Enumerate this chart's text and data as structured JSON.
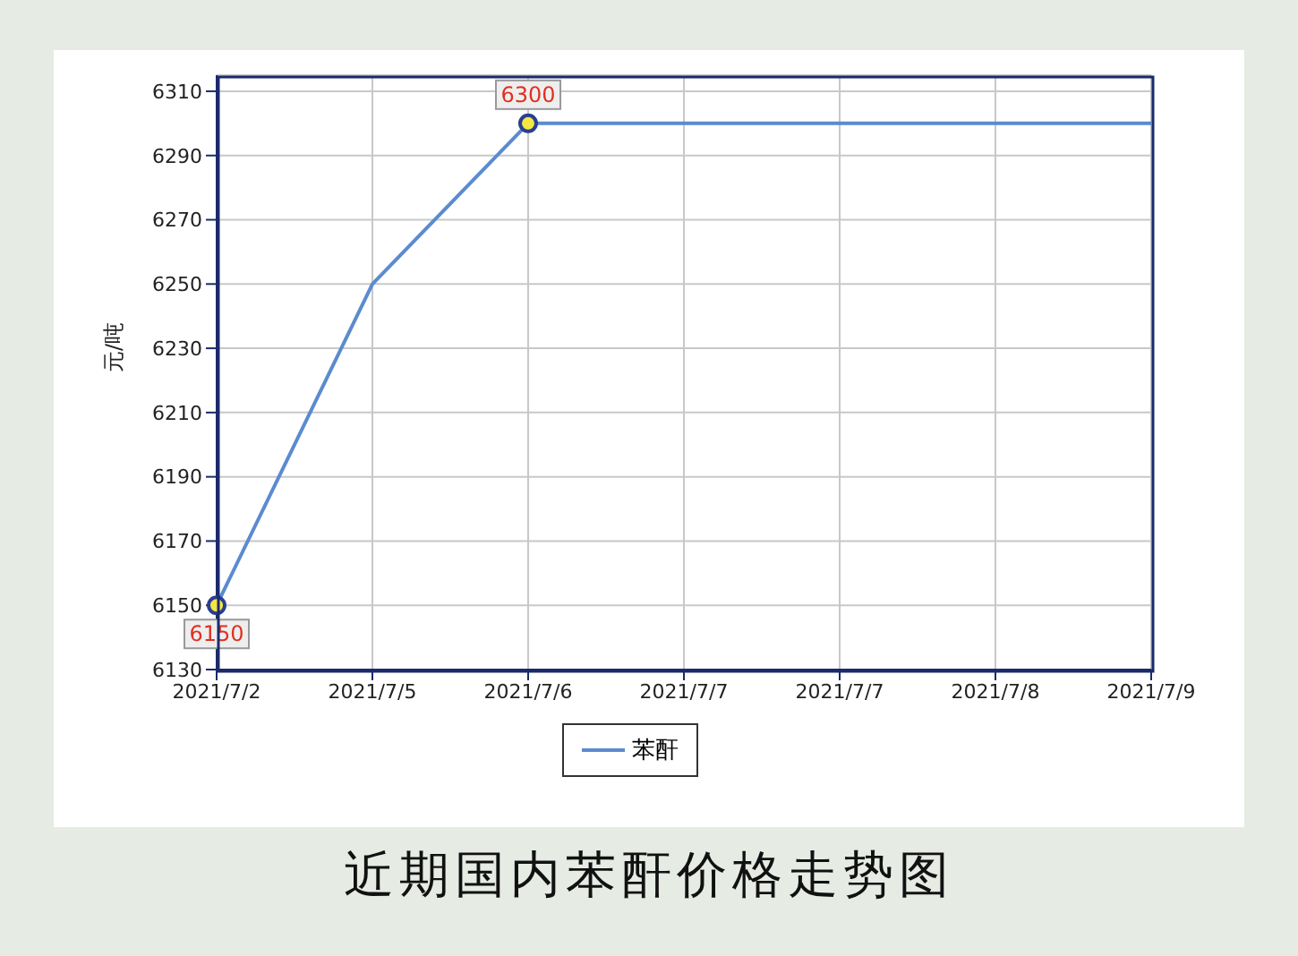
{
  "chart_data": {
    "type": "line",
    "title": "近期国内苯酐价格走势图",
    "ylabel": "元/吨",
    "categories": [
      "2021/7/2",
      "2021/7/5",
      "2021/7/6",
      "2021/7/7",
      "2021/7/7",
      "2021/7/8",
      "2021/7/9"
    ],
    "series": [
      {
        "name": "苯酐",
        "color": "#5b8bd0",
        "values": [
          6150,
          6250,
          6300,
          6300,
          6300,
          6300,
          6300
        ],
        "value_labels": [
          "6150",
          null,
          "6300",
          null,
          null,
          null,
          null
        ]
      }
    ],
    "ylim": [
      6130,
      6315
    ],
    "yticks": [
      6130,
      6150,
      6170,
      6190,
      6210,
      6230,
      6250,
      6270,
      6290,
      6310
    ],
    "grid": true,
    "legend": "bottom"
  }
}
